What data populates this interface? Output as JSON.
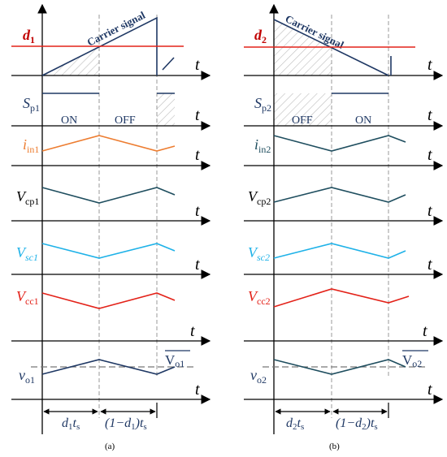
{
  "colors": {
    "axis": "#000000",
    "navy": "#1f3864",
    "teal": "#1f4e5f",
    "red": "#e32219",
    "orange": "#ed7d31",
    "cyan": "#1fb2e8",
    "hatch": "#bdbdbd",
    "guide": "#9a9a9a"
  },
  "panel_a": {
    "caption": "(a)",
    "carrier_label": "Carrier signal",
    "duty_label": {
      "base": "d",
      "sub": "1"
    },
    "sp_label": {
      "base": "S",
      "sub": "p1"
    },
    "on_label": "ON",
    "off_label": "OFF",
    "iin_label": {
      "base": "i",
      "sub": "in1"
    },
    "vcp_label": {
      "base": "V",
      "sub": "cp1"
    },
    "vsc_label": {
      "base": "V",
      "sub": "sc1"
    },
    "vcc_label": {
      "base": "V",
      "sub": "cc1"
    },
    "vo_label": {
      "base": "v",
      "sub": "o1"
    },
    "vo_avg_label": {
      "base": "V",
      "sub": "o1"
    },
    "dim1": {
      "a": "d",
      "b": "1",
      "c": "t",
      "d": "s"
    },
    "dim2": {
      "a": "(1−d",
      "b": "1",
      "c": ")t",
      "d": "s"
    }
  },
  "panel_b": {
    "caption": "(b)",
    "carrier_label": "Carrier signal",
    "duty_label": {
      "base": "d",
      "sub": "2"
    },
    "sp_label": {
      "base": "S",
      "sub": "p2"
    },
    "off_label": "OFF",
    "on_label": "ON",
    "iin_label": {
      "base": "i",
      "sub": "in2"
    },
    "vcp_label": {
      "base": "V",
      "sub": "cp2"
    },
    "vsc_label": {
      "base": "V",
      "sub": "sc2"
    },
    "vcc_label": {
      "base": "V",
      "sub": "cc2"
    },
    "vo_label": {
      "base": "v",
      "sub": "o2"
    },
    "vo_avg_label": {
      "base": "V",
      "sub": "o2"
    },
    "dim1": {
      "a": "d",
      "b": "2",
      "c": "t",
      "d": "s"
    },
    "dim2": {
      "a": "(1−d",
      "b": "2",
      "c": ")t",
      "d": "s"
    }
  },
  "axis_label": "t"
}
